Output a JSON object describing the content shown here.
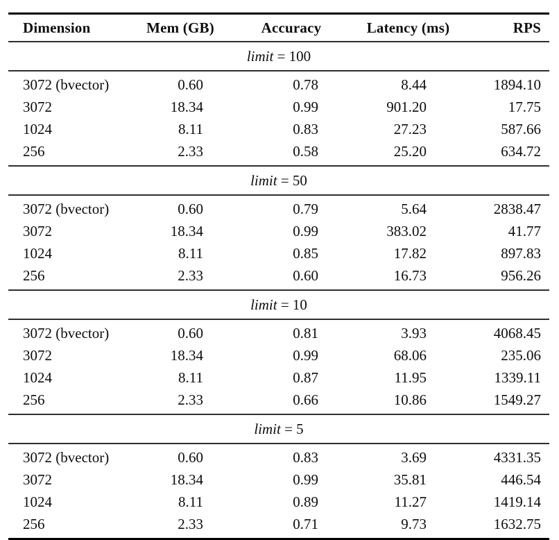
{
  "colors": {
    "background": "#ffffff",
    "text": "#0d0d0d",
    "rule_heavy": "#000000",
    "rule_light": "#2e2e2e"
  },
  "table": {
    "headers": {
      "dimension": "Dimension",
      "mem": "Mem (GB)",
      "accuracy": "Accuracy",
      "latency": "Latency (ms)",
      "rps": "RPS"
    },
    "sections": [
      {
        "label_var": "limit",
        "label_eq": "= 100",
        "rows": [
          [
            "3072 (bvector)",
            "0.60",
            "0.78",
            "8.44",
            "1894.10"
          ],
          [
            "3072",
            "18.34",
            "0.99",
            "901.20",
            "17.75"
          ],
          [
            "1024",
            "8.11",
            "0.83",
            "27.23",
            "587.66"
          ],
          [
            "256",
            "2.33",
            "0.58",
            "25.20",
            "634.72"
          ]
        ]
      },
      {
        "label_var": "limit",
        "label_eq": "= 50",
        "rows": [
          [
            "3072 (bvector)",
            "0.60",
            "0.79",
            "5.64",
            "2838.47"
          ],
          [
            "3072",
            "18.34",
            "0.99",
            "383.02",
            "41.77"
          ],
          [
            "1024",
            "8.11",
            "0.85",
            "17.82",
            "897.83"
          ],
          [
            "256",
            "2.33",
            "0.60",
            "16.73",
            "956.26"
          ]
        ]
      },
      {
        "label_var": "limit",
        "label_eq": "= 10",
        "rows": [
          [
            "3072 (bvector)",
            "0.60",
            "0.81",
            "3.93",
            "4068.45"
          ],
          [
            "3072",
            "18.34",
            "0.99",
            "68.06",
            "235.06"
          ],
          [
            "1024",
            "8.11",
            "0.87",
            "11.95",
            "1339.11"
          ],
          [
            "256",
            "2.33",
            "0.66",
            "10.86",
            "1549.27"
          ]
        ]
      },
      {
        "label_var": "limit",
        "label_eq": "= 5",
        "rows": [
          [
            "3072 (bvector)",
            "0.60",
            "0.83",
            "3.69",
            "4331.35"
          ],
          [
            "3072",
            "18.34",
            "0.99",
            "35.81",
            "446.54"
          ],
          [
            "1024",
            "8.11",
            "0.89",
            "11.27",
            "1419.14"
          ],
          [
            "256",
            "2.33",
            "0.71",
            "9.73",
            "1632.75"
          ]
        ]
      }
    ]
  }
}
